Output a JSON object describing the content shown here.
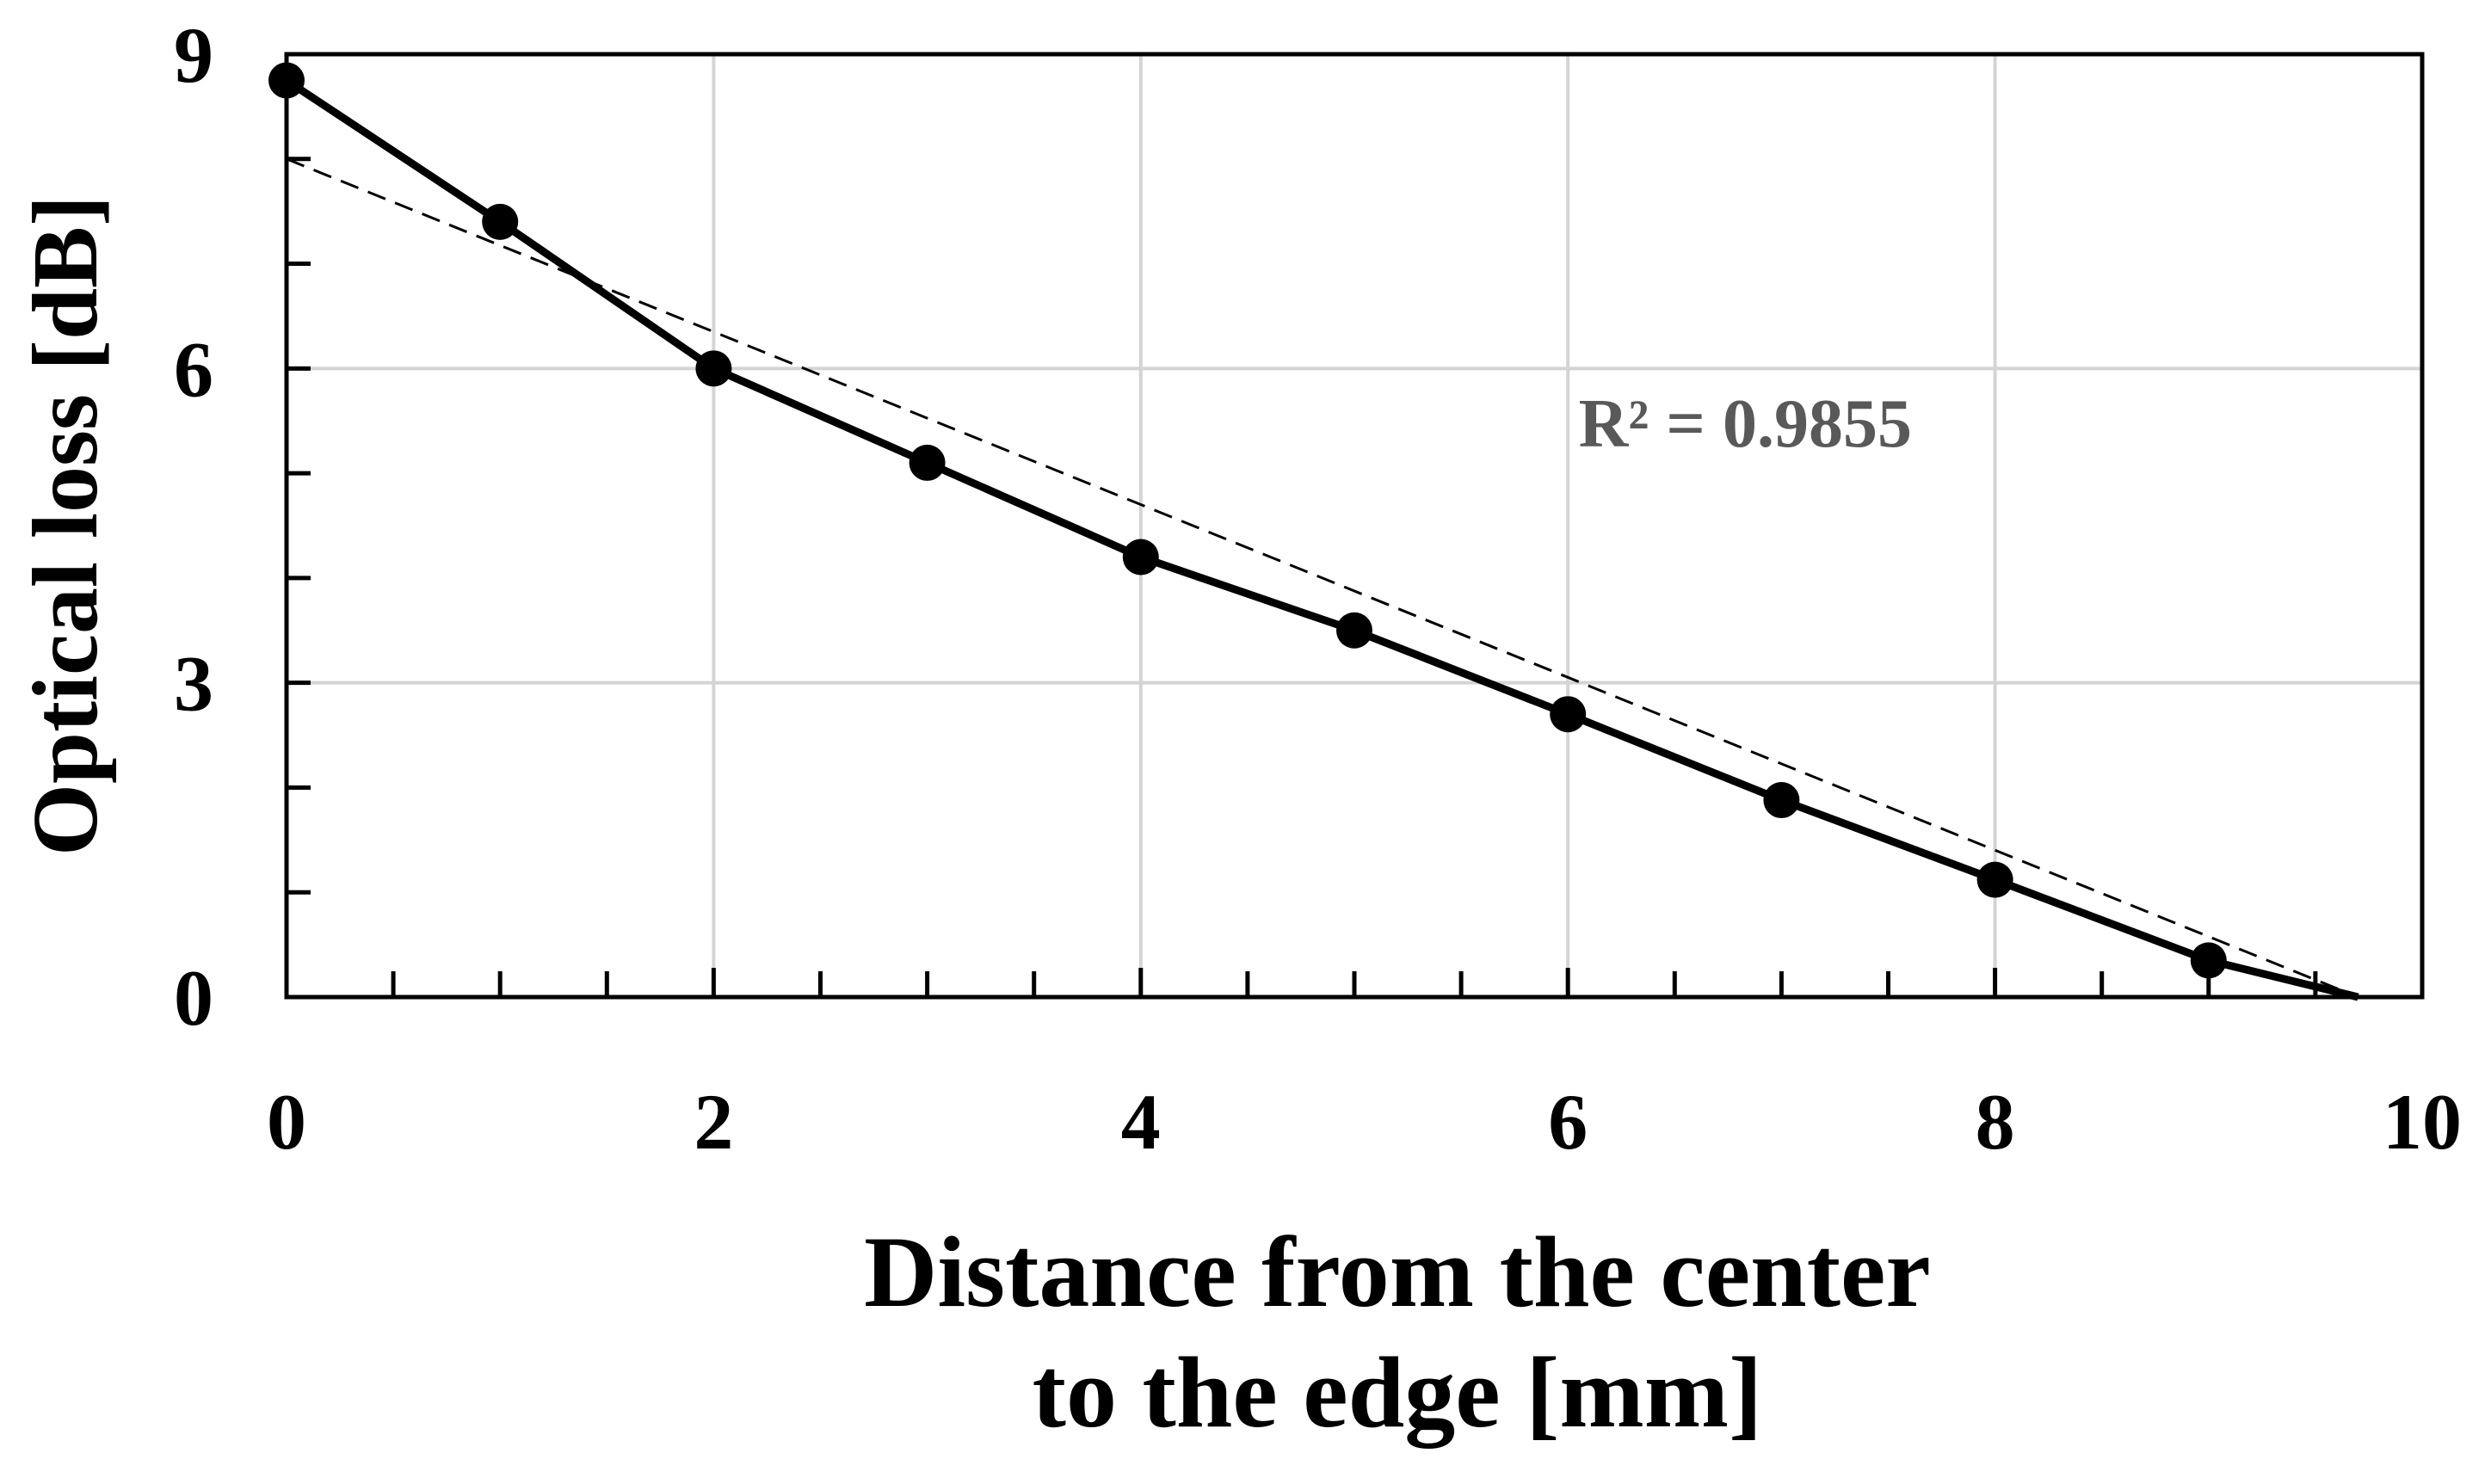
{
  "chart_data": {
    "type": "line",
    "title": "",
    "xlabel_lines": [
      "Distance from the center",
      "to the edge [mm]"
    ],
    "ylabel": "Optical loss [dB]",
    "xlim": [
      0,
      10
    ],
    "ylim": [
      0,
      9
    ],
    "x_ticks": [
      0,
      2,
      4,
      6,
      8,
      10
    ],
    "x_tick_labels": [
      "0",
      "2",
      "4",
      "6",
      "8",
      "10"
    ],
    "x_minor_step": 0.5,
    "y_ticks": [
      0,
      3,
      6,
      9
    ],
    "y_tick_labels": [
      "0",
      "3",
      "6",
      "9"
    ],
    "y_minor_step": 1,
    "grid": true,
    "series": [
      {
        "x": [
          0,
          1,
          2,
          3,
          4,
          5,
          6,
          7,
          8,
          9,
          9.7
        ],
        "y": [
          8.75,
          7.4,
          6.0,
          5.1,
          4.2,
          3.5,
          2.7,
          1.88,
          1.12,
          0.35,
          0.0
        ],
        "markers_on": [
          0,
          1,
          2,
          3,
          4,
          5,
          6,
          7,
          8,
          9
        ],
        "color": "#000000"
      }
    ],
    "trendline": {
      "type": "linear",
      "x": [
        0,
        9.7
      ],
      "y": [
        8.0,
        0.0
      ],
      "style": "dashed",
      "color": "#000000"
    },
    "annotations": [
      {
        "text": "R² = 0.9855",
        "x": 6.05,
        "y": 5.5,
        "color": "#595959"
      }
    ]
  }
}
